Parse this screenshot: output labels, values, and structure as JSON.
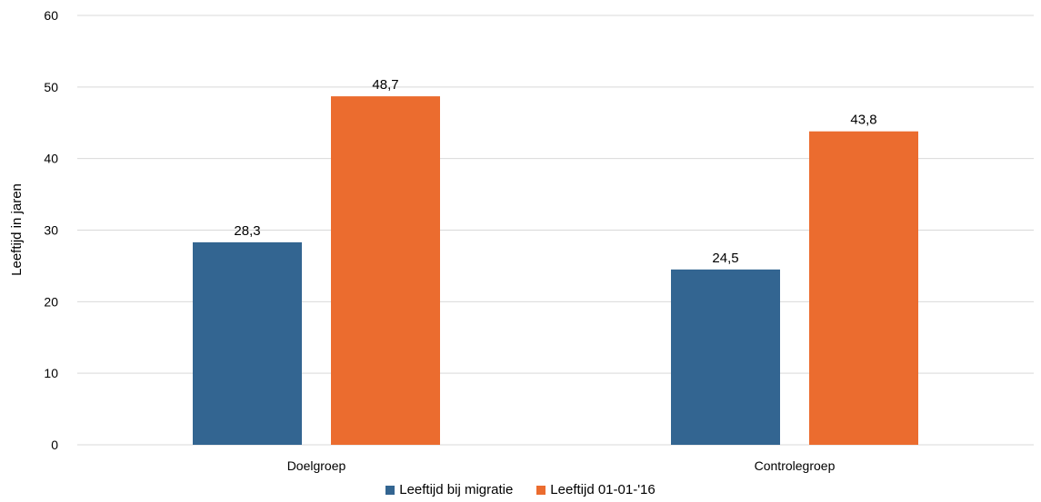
{
  "chart_data": {
    "type": "bar",
    "title": "",
    "xlabel": "",
    "ylabel": "Leeftijd in jaren",
    "ylim": [
      0,
      60
    ],
    "yticks": [
      0,
      10,
      20,
      30,
      40,
      50,
      60
    ],
    "grid": true,
    "legend_position": "bottom",
    "categories": [
      "Doelgroep",
      "Controlegroep"
    ],
    "series": [
      {
        "name": "Leeftijd bij migratie",
        "color": "#336591",
        "values": [
          28.3,
          24.5
        ],
        "labels": [
          "28,3",
          "24,5"
        ]
      },
      {
        "name": "Leeftijd 01-01-'16",
        "color": "#eb6c2f",
        "values": [
          48.7,
          43.8
        ],
        "labels": [
          "48,7",
          "43,8"
        ]
      }
    ]
  }
}
